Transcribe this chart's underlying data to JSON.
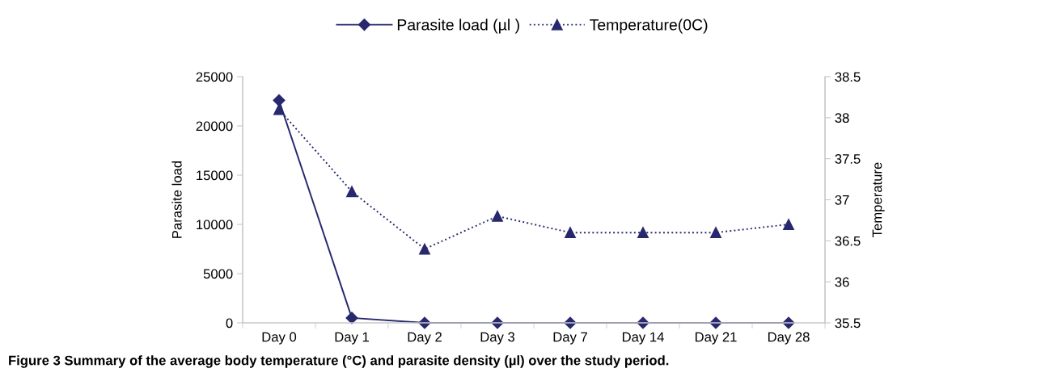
{
  "chart_data": {
    "type": "line",
    "ylabel": "Parasite load",
    "y2label": "Temperature",
    "categories": [
      "Day 0",
      "Day 1",
      "Day 2",
      "Day 3",
      "Day 7",
      "Day 14",
      "Day 21",
      "Day 28"
    ],
    "series": [
      {
        "name": "Parasite load (µl )",
        "color": "#27286e",
        "values": [
          22600,
          500,
          0,
          0,
          0,
          0,
          0,
          0
        ],
        "marker": "diamond",
        "line_style": "solid"
      },
      {
        "name": "Temperature(0C)",
        "color": "#27286e",
        "values": [
          38.1,
          37.1,
          36.4,
          36.8,
          36.6,
          36.6,
          36.6,
          36.7
        ],
        "axis": "y2",
        "marker": "triangle",
        "line_style": "dotted"
      }
    ],
    "ylim": [
      0,
      25000
    ],
    "yticks": [
      0,
      5000,
      10000,
      15000,
      20000,
      25000
    ],
    "y2lim": [
      35.5,
      38.5
    ],
    "y2ticks": [
      35.5,
      36,
      36.5,
      37,
      37.5,
      38,
      38.5
    ],
    "grid": false,
    "legend": "top",
    "annotations": [
      "Figure 3 Summary of the average body temperature (°C) and parasite density (µl) over the study period."
    ]
  }
}
